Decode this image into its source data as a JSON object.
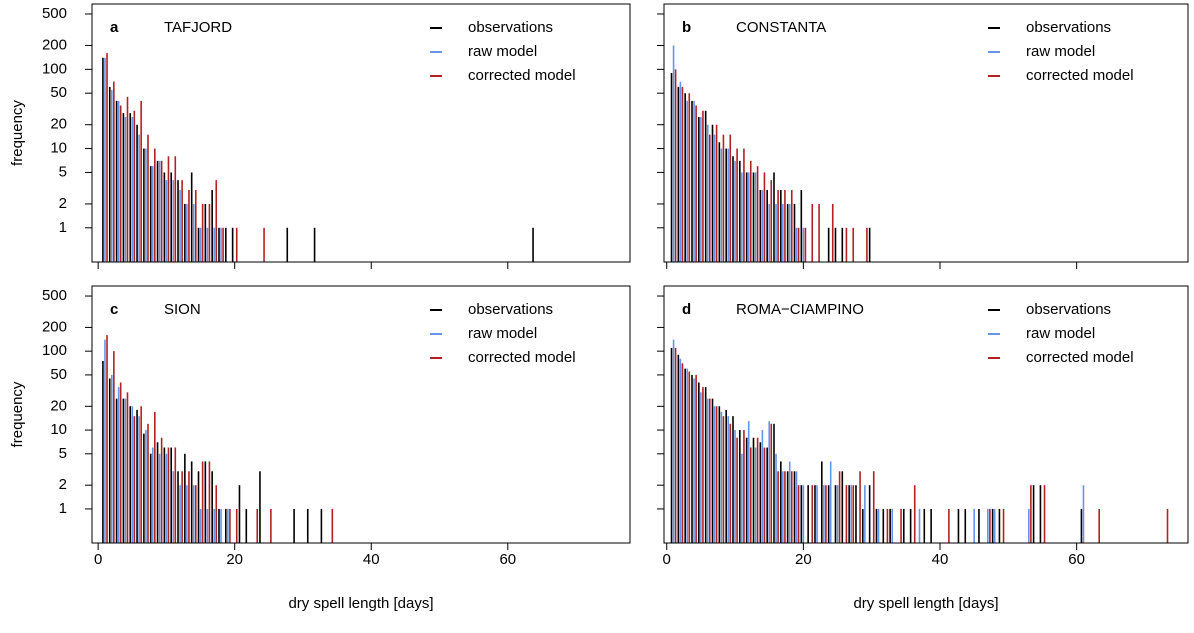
{
  "chart_data": [
    {
      "type": "bar",
      "panel_label": "a",
      "title": "TAFJORD",
      "y_label": "frequency",
      "log_y": true,
      "legend": "topright",
      "xlim": [
        -0.9,
        77.9
      ],
      "xticks": [
        0,
        20,
        40,
        60
      ],
      "ylim": [
        0.37,
        668
      ],
      "yticks": [
        1,
        2,
        5,
        10,
        20,
        50,
        100,
        200,
        500
      ],
      "series": [
        {
          "name": "observations",
          "color": "#000000",
          "x": [
            1,
            2,
            3,
            4,
            5,
            6,
            7,
            8,
            9,
            10,
            11,
            12,
            13,
            14,
            15,
            16,
            17,
            18,
            19,
            20,
            28,
            32,
            64
          ],
          "values": [
            140,
            60,
            40,
            28,
            28,
            20,
            10,
            6,
            7,
            5,
            5,
            4,
            2,
            5,
            1,
            2,
            3,
            1,
            1,
            1,
            1,
            1,
            1
          ]
        },
        {
          "name": "raw model",
          "color": "#6495ED",
          "x": [
            1,
            2,
            3,
            4,
            5,
            6,
            7,
            8,
            9,
            10,
            11,
            12,
            13,
            14,
            15,
            16,
            17,
            18
          ],
          "values": [
            140,
            55,
            40,
            25,
            25,
            15,
            10,
            6,
            7,
            4,
            4,
            3,
            2,
            2,
            1,
            1,
            1,
            1
          ]
        },
        {
          "name": "corrected model",
          "color": "#B22222",
          "x": [
            1,
            2,
            3,
            4,
            5,
            6,
            7,
            8,
            9,
            10,
            11,
            12,
            13,
            14,
            15,
            16,
            17,
            18,
            20,
            24
          ],
          "values": [
            160,
            70,
            35,
            45,
            30,
            40,
            15,
            10,
            7,
            8,
            8,
            4,
            3,
            3,
            2,
            2,
            4,
            1,
            1,
            1
          ]
        }
      ]
    },
    {
      "type": "bar",
      "panel_label": "b",
      "title": "CONSTANTA",
      "log_y": true,
      "legend": "topright",
      "xlim": [
        -0.4,
        76.3
      ],
      "xticks": [
        0,
        20,
        40,
        60
      ],
      "ylim": [
        0.37,
        668
      ],
      "yticks": [
        1,
        2,
        5,
        10,
        20,
        50,
        100,
        200,
        500
      ],
      "series": [
        {
          "name": "observations",
          "color": "#000000",
          "x": [
            1,
            2,
            3,
            4,
            5,
            6,
            7,
            8,
            9,
            10,
            11,
            12,
            13,
            14,
            15,
            16,
            17,
            18,
            19,
            20,
            24,
            25,
            26,
            30
          ],
          "values": [
            90,
            60,
            50,
            40,
            25,
            30,
            20,
            12,
            10,
            8,
            7,
            5,
            5,
            3,
            3,
            5,
            3,
            2,
            2,
            3,
            1,
            1,
            1,
            1
          ]
        },
        {
          "name": "raw model",
          "color": "#6495ED",
          "x": [
            1,
            2,
            3,
            4,
            5,
            6,
            7,
            8,
            9,
            10,
            11,
            12,
            13,
            14,
            15,
            16,
            17,
            18,
            19,
            20
          ],
          "values": [
            200,
            70,
            40,
            40,
            25,
            20,
            15,
            10,
            10,
            7,
            5,
            5,
            5,
            3,
            2,
            2,
            2,
            2,
            1,
            1
          ]
        },
        {
          "name": "corrected model",
          "color": "#B22222",
          "x": [
            1,
            2,
            3,
            4,
            5,
            6,
            7,
            8,
            9,
            10,
            11,
            12,
            13,
            14,
            15,
            16,
            17,
            18,
            19,
            20,
            21,
            22,
            24,
            26,
            27,
            29
          ],
          "values": [
            100,
            60,
            50,
            35,
            30,
            15,
            20,
            15,
            15,
            10,
            10,
            7,
            6,
            5,
            4,
            3,
            3,
            3,
            1,
            1,
            2,
            2,
            2,
            1,
            1,
            1
          ]
        }
      ]
    },
    {
      "type": "bar",
      "panel_label": "c",
      "title": "SION",
      "y_label": "frequency",
      "x_label": "dry spell length [days]",
      "log_y": true,
      "legend": "topright",
      "xlim": [
        -0.9,
        77.9
      ],
      "xticks": [
        0,
        20,
        40,
        60
      ],
      "ylim": [
        0.37,
        670
      ],
      "yticks": [
        1,
        2,
        5,
        10,
        20,
        50,
        100,
        200,
        500
      ],
      "series": [
        {
          "name": "observations",
          "color": "#000000",
          "x": [
            1,
            2,
            3,
            4,
            5,
            6,
            7,
            8,
            9,
            10,
            11,
            12,
            13,
            14,
            15,
            16,
            17,
            18,
            19,
            21,
            22,
            24,
            29,
            31,
            33
          ],
          "values": [
            75,
            45,
            25,
            25,
            20,
            18,
            9,
            5,
            7,
            6,
            6,
            3,
            5,
            4,
            3,
            4,
            3,
            1,
            1,
            2,
            1,
            3,
            1,
            1,
            1
          ]
        },
        {
          "name": "raw model",
          "color": "#6495ED",
          "x": [
            1,
            2,
            3,
            4,
            5,
            6,
            7,
            8,
            9,
            10,
            11,
            12,
            13,
            14,
            15,
            16,
            17,
            18,
            19
          ],
          "values": [
            140,
            50,
            35,
            25,
            20,
            15,
            10,
            6,
            5,
            5,
            3,
            2,
            2,
            2,
            1,
            1,
            1,
            1,
            1
          ]
        },
        {
          "name": "corrected model",
          "color": "#B22222",
          "x": [
            1,
            2,
            3,
            4,
            5,
            6,
            7,
            8,
            9,
            10,
            11,
            12,
            13,
            14,
            15,
            16,
            17,
            19,
            20,
            23,
            25,
            34
          ],
          "values": [
            160,
            100,
            40,
            30,
            15,
            20,
            12,
            17,
            8,
            6,
            6,
            3,
            3,
            2,
            4,
            4,
            2,
            1,
            1,
            1,
            1,
            1
          ]
        }
      ]
    },
    {
      "type": "bar",
      "panel_label": "d",
      "title": "ROMA−CIAMPINO",
      "x_label": "dry spell length [days]",
      "log_y": true,
      "legend": "topright",
      "xlim": [
        -0.4,
        76.3
      ],
      "xticks": [
        0,
        20,
        40,
        60
      ],
      "ylim": [
        0.37,
        670
      ],
      "yticks": [
        1,
        2,
        5,
        10,
        20,
        50,
        100,
        200,
        500
      ],
      "series": [
        {
          "name": "observations",
          "color": "#000000",
          "x": [
            1,
            2,
            3,
            4,
            5,
            6,
            7,
            8,
            9,
            10,
            11,
            12,
            13,
            14,
            15,
            16,
            17,
            18,
            19,
            20,
            21,
            22,
            23,
            24,
            25,
            26,
            27,
            28,
            29,
            30,
            31,
            32,
            33,
            35,
            36,
            38,
            39,
            43,
            44,
            46,
            48,
            49,
            54,
            55,
            61
          ],
          "values": [
            110,
            90,
            60,
            50,
            40,
            35,
            25,
            20,
            18,
            15,
            10,
            8,
            8,
            7,
            6,
            12,
            4,
            3,
            3,
            2,
            2,
            2,
            4,
            2,
            2,
            3,
            2,
            2,
            1,
            2,
            1,
            1,
            1,
            1,
            1,
            1,
            1,
            1,
            1,
            1,
            1,
            1,
            2,
            2,
            1
          ]
        },
        {
          "name": "raw model",
          "color": "#6495ED",
          "x": [
            1,
            2,
            3,
            4,
            5,
            6,
            7,
            8,
            9,
            10,
            11,
            12,
            13,
            14,
            15,
            16,
            17,
            18,
            19,
            20,
            22,
            23,
            24,
            25,
            27,
            29,
            31,
            33,
            37,
            45,
            47,
            48,
            53,
            61
          ],
          "values": [
            140,
            80,
            60,
            45,
            30,
            25,
            20,
            17,
            15,
            10,
            5,
            13,
            6,
            10,
            13,
            5,
            3,
            4,
            3,
            2,
            2,
            2,
            4,
            2,
            2,
            2,
            1,
            1,
            1,
            1,
            1,
            1,
            1,
            2
          ]
        },
        {
          "name": "corrected model",
          "color": "#B22222",
          "x": [
            1,
            2,
            3,
            4,
            5,
            6,
            7,
            8,
            9,
            10,
            11,
            12,
            13,
            14,
            15,
            16,
            17,
            18,
            19,
            21,
            23,
            25,
            26,
            27,
            28,
            30,
            32,
            34,
            36,
            41,
            47,
            49,
            53,
            55,
            63,
            73
          ],
          "values": [
            110,
            70,
            55,
            50,
            35,
            25,
            20,
            15,
            12,
            8,
            10,
            6,
            8,
            6,
            12,
            3,
            3,
            3,
            2,
            2,
            2,
            3,
            2,
            2,
            3,
            3,
            1,
            1,
            2,
            1,
            1,
            1,
            2,
            2,
            1,
            1
          ]
        }
      ]
    }
  ]
}
